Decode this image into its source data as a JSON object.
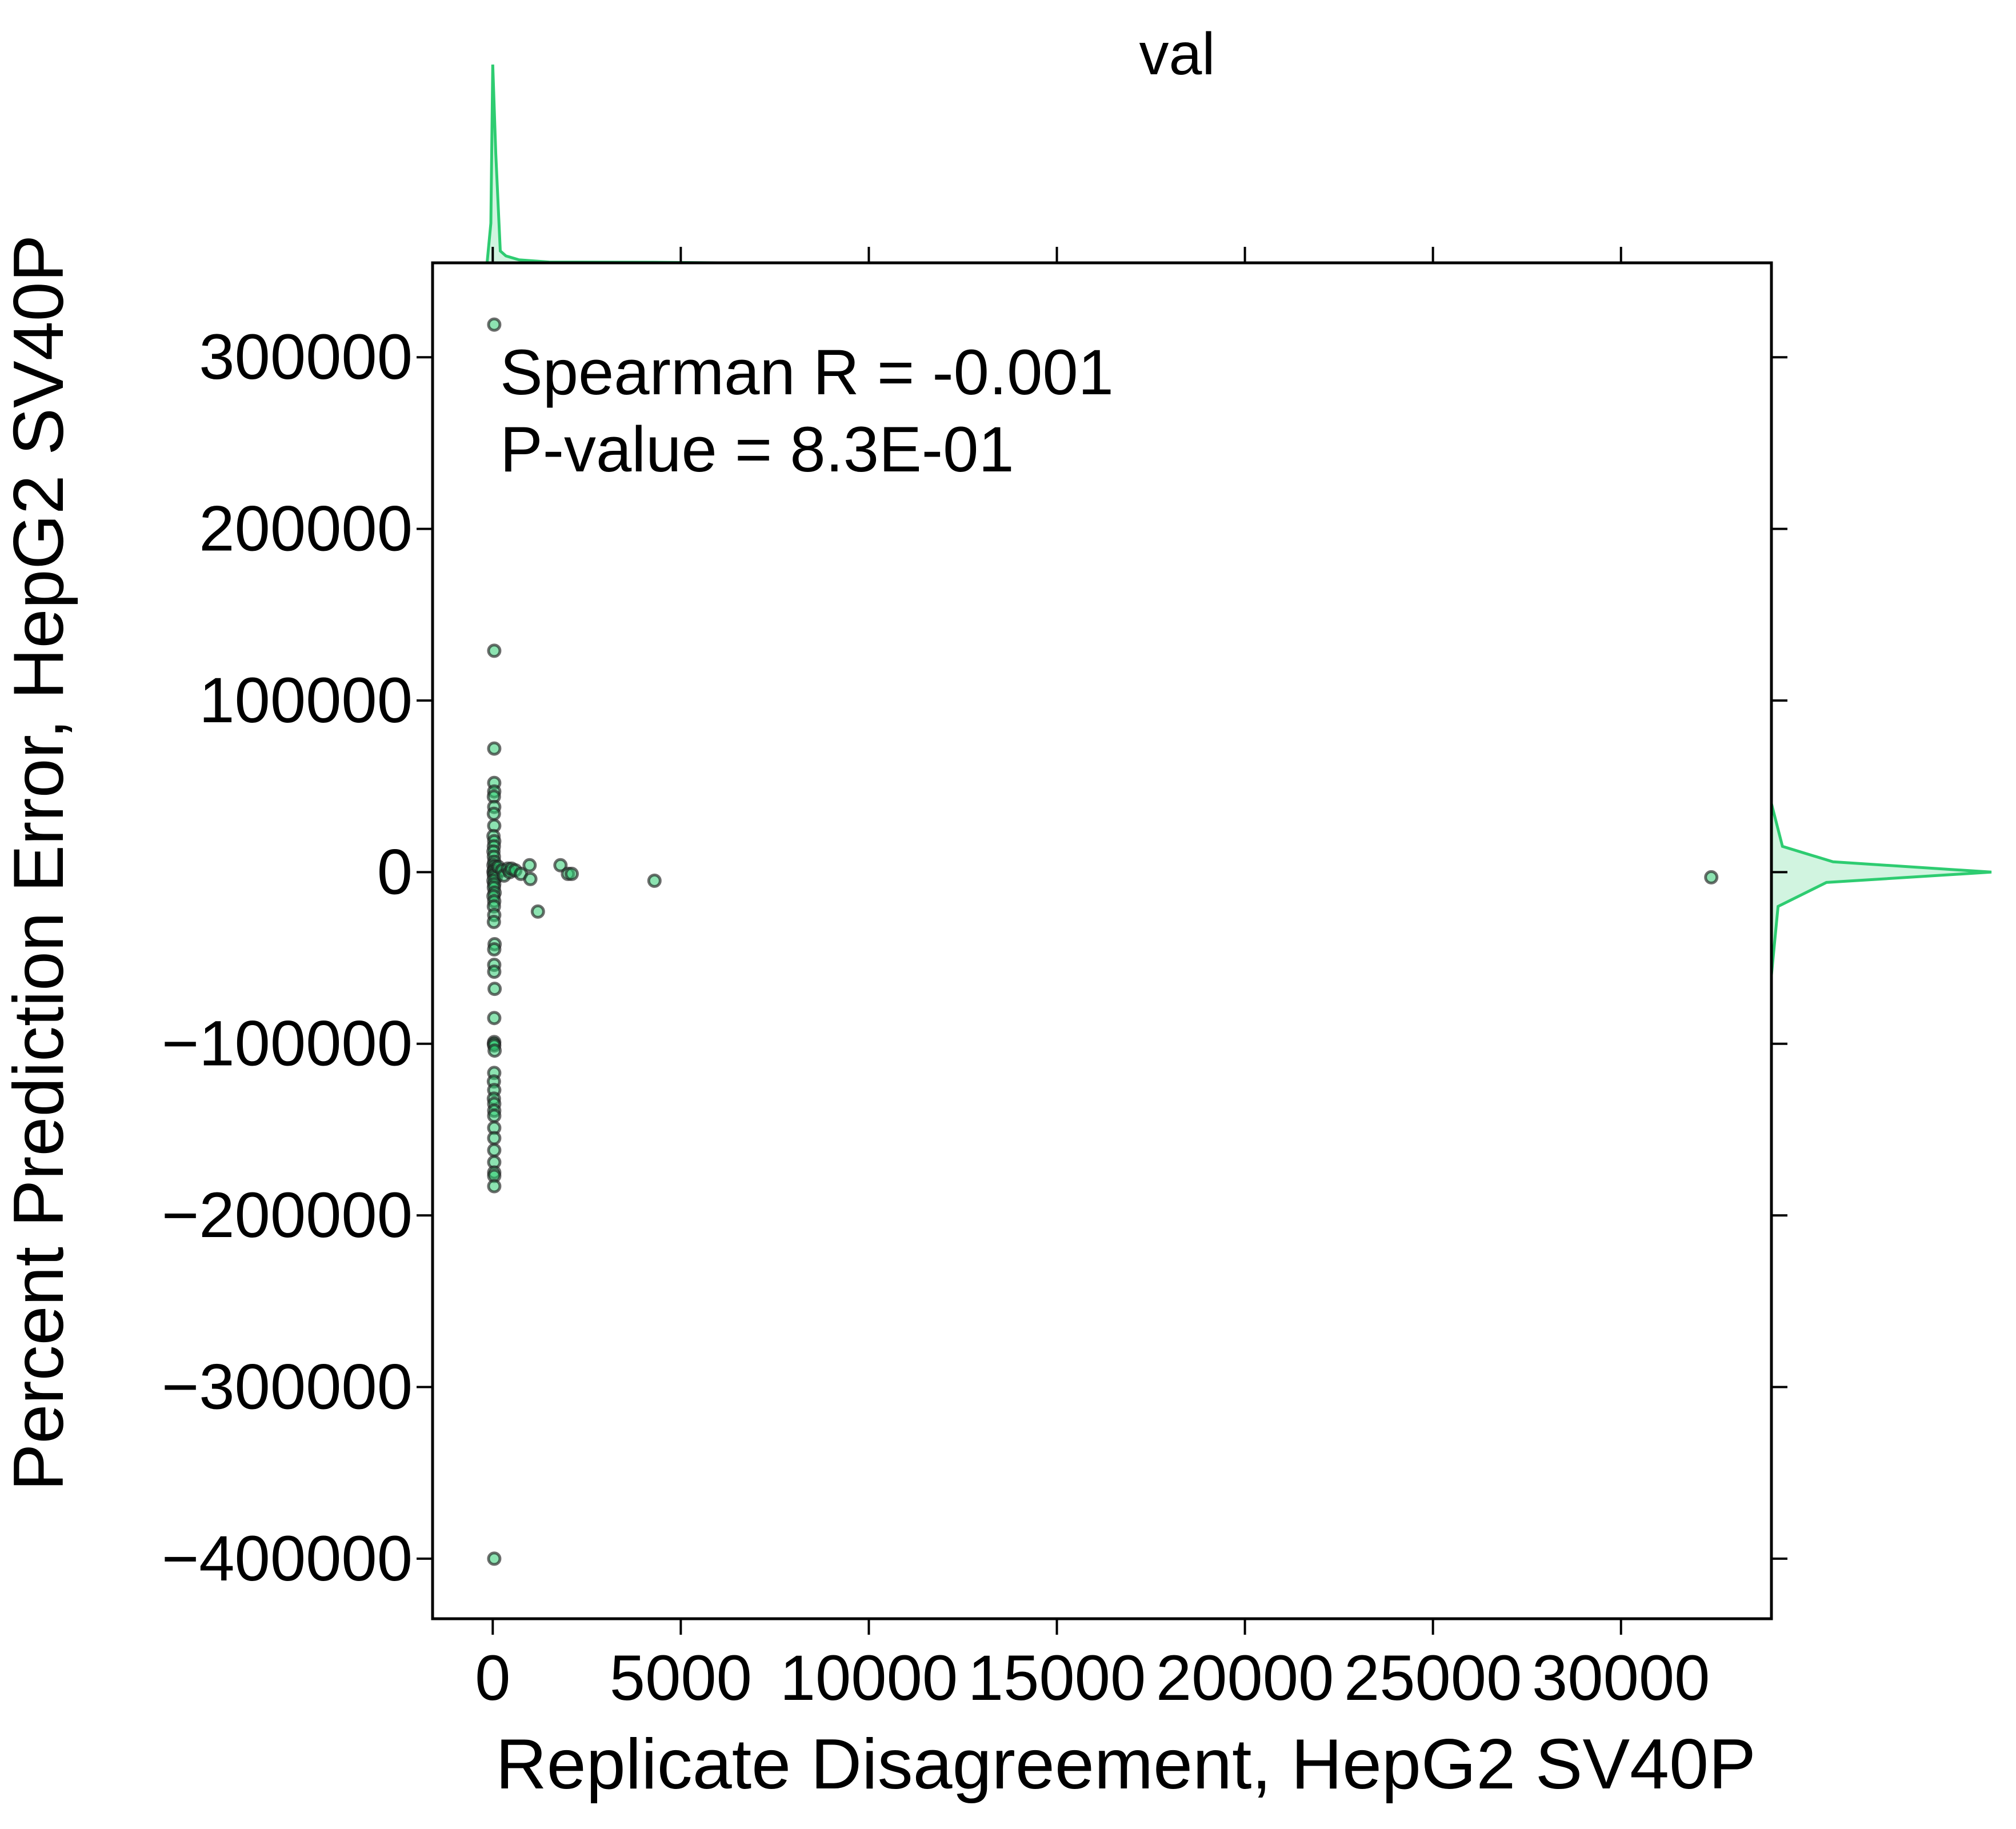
{
  "chart_data": {
    "type": "scatter",
    "title": "val",
    "xlabel": "Replicate Disagreement, HepG2 SV40P",
    "ylabel": "Percent Prediction Error, HepG2 SV40P",
    "xlim": [
      -1600,
      34000
    ],
    "ylim": [
      -435000,
      355000
    ],
    "xticks": [
      0,
      5000,
      10000,
      15000,
      20000,
      25000,
      30000
    ],
    "xtick_labels": [
      "0",
      "5000",
      "10000",
      "15000",
      "20000",
      "25000",
      "30000"
    ],
    "yticks": [
      300000,
      200000,
      100000,
      0,
      -100000,
      -200000,
      -300000,
      -400000
    ],
    "ytick_labels": [
      "300000",
      "200000",
      "100000",
      "0",
      "−100000",
      "−200000",
      "−300000",
      "−400000"
    ],
    "grid": false,
    "annotations": [
      "Spearman R = -0.001",
      "P-value = 8.3E-01"
    ],
    "marginal_top_kde": [
      [
        -150,
        0
      ],
      [
        -50,
        0.2
      ],
      [
        0,
        1.0
      ],
      [
        80,
        0.55
      ],
      [
        200,
        0.06
      ],
      [
        350,
        0.035
      ],
      [
        700,
        0.015
      ],
      [
        1500,
        0.004
      ],
      [
        4200,
        0.003
      ],
      [
        6000,
        0.0
      ]
    ],
    "marginal_right_kde": [
      [
        -60000,
        0
      ],
      [
        -20000,
        0.03
      ],
      [
        -6000,
        0.25
      ],
      [
        0,
        1.0
      ],
      [
        6000,
        0.28
      ],
      [
        15000,
        0.05
      ],
      [
        40000,
        0.0
      ]
    ],
    "colors": {
      "marker_fill": "#2ecc71",
      "marker_edge": "#222222",
      "kde_line": "#2ecc71",
      "kde_fill": "#2ecc71",
      "axes": "#000000"
    },
    "points": [
      [
        40,
        319000
      ],
      [
        40,
        129000
      ],
      [
        40,
        72000
      ],
      [
        40,
        52000
      ],
      [
        40,
        47000
      ],
      [
        30,
        44000
      ],
      [
        40,
        38000
      ],
      [
        30,
        34000
      ],
      [
        40,
        27000
      ],
      [
        20,
        21000
      ],
      [
        40,
        18000
      ],
      [
        30,
        15000
      ],
      [
        20,
        12000
      ],
      [
        30,
        9000
      ],
      [
        40,
        6000
      ],
      [
        20,
        4000
      ],
      [
        60,
        3000
      ],
      [
        30,
        1000
      ],
      [
        20,
        0
      ],
      [
        50,
        -1000
      ],
      [
        30,
        -2000
      ],
      [
        80,
        -3000
      ],
      [
        20,
        -5000
      ],
      [
        40,
        -7000
      ],
      [
        30,
        -9000
      ],
      [
        50,
        -12000
      ],
      [
        20,
        -14000
      ],
      [
        40,
        -17000
      ],
      [
        30,
        -20000
      ],
      [
        40,
        -25000
      ],
      [
        30,
        -29000
      ],
      [
        50,
        -42000
      ],
      [
        40,
        -45000
      ],
      [
        40,
        -54000
      ],
      [
        40,
        -58000
      ],
      [
        50,
        -68000
      ],
      [
        40,
        -85000
      ],
      [
        40,
        -99000
      ],
      [
        30,
        -100000
      ],
      [
        40,
        -101000
      ],
      [
        50,
        -104000
      ],
      [
        40,
        -117000
      ],
      [
        30,
        -122000
      ],
      [
        40,
        -127000
      ],
      [
        30,
        -132000
      ],
      [
        40,
        -135000
      ],
      [
        40,
        -139000
      ],
      [
        40,
        -142000
      ],
      [
        40,
        -149000
      ],
      [
        40,
        -155000
      ],
      [
        40,
        -162000
      ],
      [
        40,
        -169000
      ],
      [
        40,
        -175000
      ],
      [
        40,
        -177000
      ],
      [
        40,
        -183000
      ],
      [
        40,
        -400000
      ],
      [
        150,
        3000
      ],
      [
        250,
        1000
      ],
      [
        300,
        -2000
      ],
      [
        400,
        2000
      ],
      [
        450,
        0
      ],
      [
        500,
        2000
      ],
      [
        600,
        1000
      ],
      [
        750,
        -1000
      ],
      [
        980,
        4000
      ],
      [
        1000,
        -4000
      ],
      [
        1200,
        -23000
      ],
      [
        1800,
        4000
      ],
      [
        2000,
        -1000
      ],
      [
        2100,
        -1000
      ],
      [
        4300,
        -5000
      ],
      [
        32400,
        -3000
      ]
    ]
  }
}
